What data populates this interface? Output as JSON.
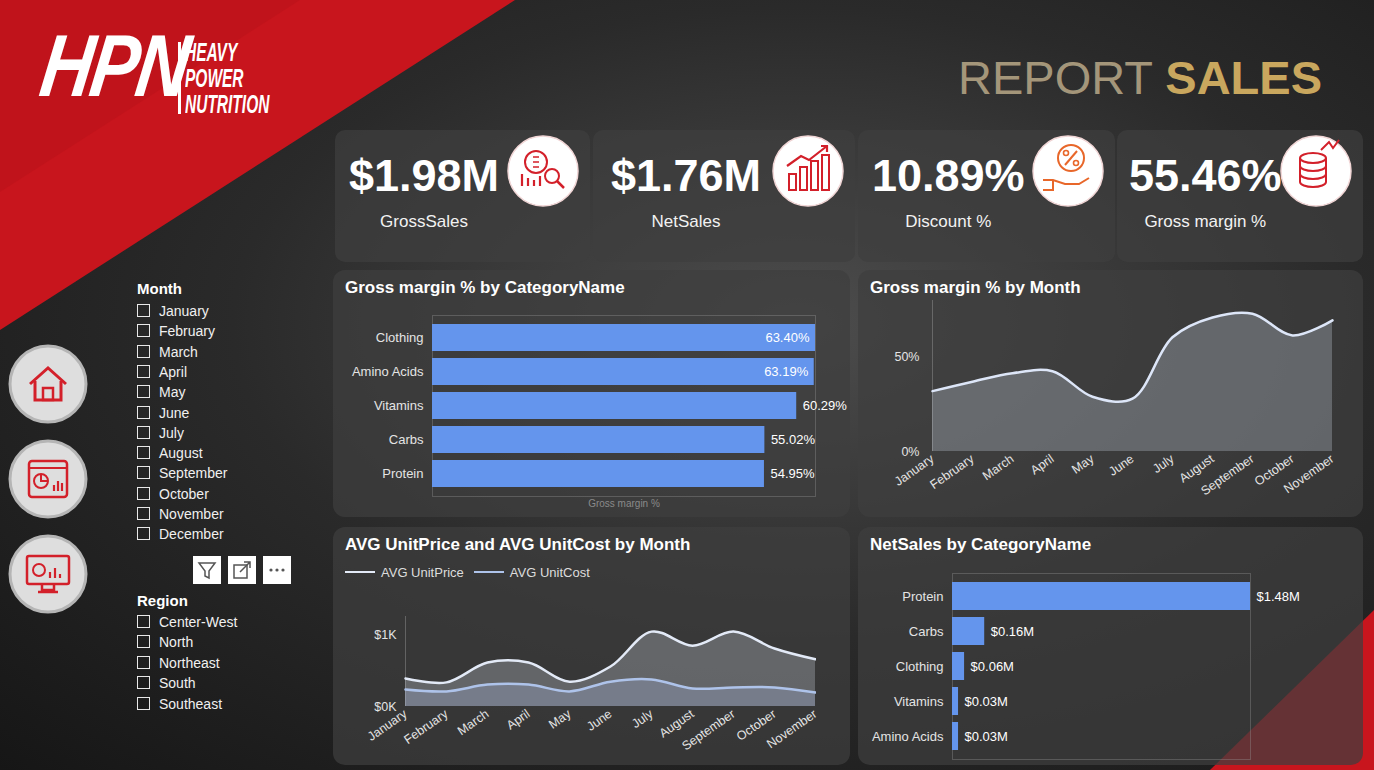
{
  "header": {
    "logo_mark": "HPN",
    "logo_lines": [
      "HEAVY",
      "POWER",
      "NUTRITION"
    ],
    "title_light": "REPORT",
    "title_bold": "SALES"
  },
  "kpis": [
    {
      "value": "$1.98M",
      "label": "GrossSales"
    },
    {
      "value": "$1.76M",
      "label": "NetSales"
    },
    {
      "value": "10.89%",
      "label": "Discount %"
    },
    {
      "value": "55.46%",
      "label": "Gross margin %"
    }
  ],
  "slicers": [
    {
      "title": "Month",
      "items": [
        "January",
        "February",
        "March",
        "April",
        "May",
        "June",
        "July",
        "August",
        "September",
        "October",
        "November",
        "December"
      ]
    },
    {
      "title": "Region",
      "items": [
        "Center-West",
        "North",
        "Northeast",
        "South",
        "Southeast"
      ]
    }
  ],
  "chart_data": [
    {
      "type": "bar",
      "title": "Gross margin % by CategoryName",
      "orientation": "horizontal",
      "categories": [
        "Clothing",
        "Amino Acids",
        "Vitamins",
        "Carbs",
        "Protein"
      ],
      "values": [
        63.4,
        63.19,
        60.29,
        55.02,
        54.95
      ],
      "value_labels": [
        "63.40%",
        "63.19%",
        "60.29%",
        "55.02%",
        "54.95%"
      ],
      "data_labels": true,
      "color": "#6495ed",
      "xlabel": "Gross margin %",
      "xlim": [
        0,
        63.4
      ],
      "xticks": [],
      "tick_labels": "y",
      "grid": false
    },
    {
      "type": "area",
      "title": "Gross margin % by Month",
      "categories": [
        "January",
        "February",
        "March",
        "April",
        "May",
        "June",
        "July",
        "August",
        "September",
        "October",
        "November"
      ],
      "values": [
        32,
        37,
        41.5,
        42.5,
        29,
        28,
        60.5,
        71,
        73,
        61.5,
        69.5
      ],
      "color": "#dde6f8",
      "ylim": [
        0,
        80
      ],
      "yticks": [
        {
          "value": 0,
          "label": "0%"
        },
        {
          "value": 50,
          "label": "50%"
        }
      ],
      "grid": false
    },
    {
      "type": "area",
      "title": "AVG UnitPrice and AVG UnitCost by Month",
      "categories": [
        "January",
        "February",
        "March",
        "April",
        "May",
        "June",
        "July",
        "August",
        "September",
        "October",
        "November"
      ],
      "series": [
        {
          "name": "AVG UnitPrice",
          "color": "#e3eaf7",
          "values": [
            390,
            335,
            610,
            610,
            345,
            555,
            1040,
            845,
            1040,
            805,
            655
          ]
        },
        {
          "name": "AVG UnitCost",
          "color": "#aec3ea",
          "values": [
            235,
            210,
            305,
            305,
            210,
            345,
            375,
            250,
            265,
            265,
            195
          ]
        }
      ],
      "ylim": [
        0,
        1250
      ],
      "yticks": [
        {
          "value": 0,
          "label": "$0K"
        },
        {
          "value": 1000,
          "label": "$1K"
        }
      ],
      "legend": "top-left",
      "grid": false
    },
    {
      "type": "bar",
      "title": "NetSales by CategoryName",
      "orientation": "horizontal",
      "categories": [
        "Protein",
        "Carbs",
        "Clothing",
        "Vitamins",
        "Amino Acids"
      ],
      "values": [
        1480000,
        160000,
        60000,
        30000,
        30000
      ],
      "value_labels": [
        "$1.48M",
        "$0.16M",
        "$0.06M",
        "$0.03M",
        "$0.03M"
      ],
      "data_labels": true,
      "color": "#6495ed",
      "xlim": [
        0,
        1480000
      ],
      "xticks": [],
      "tick_labels": "y",
      "grid": false
    }
  ]
}
